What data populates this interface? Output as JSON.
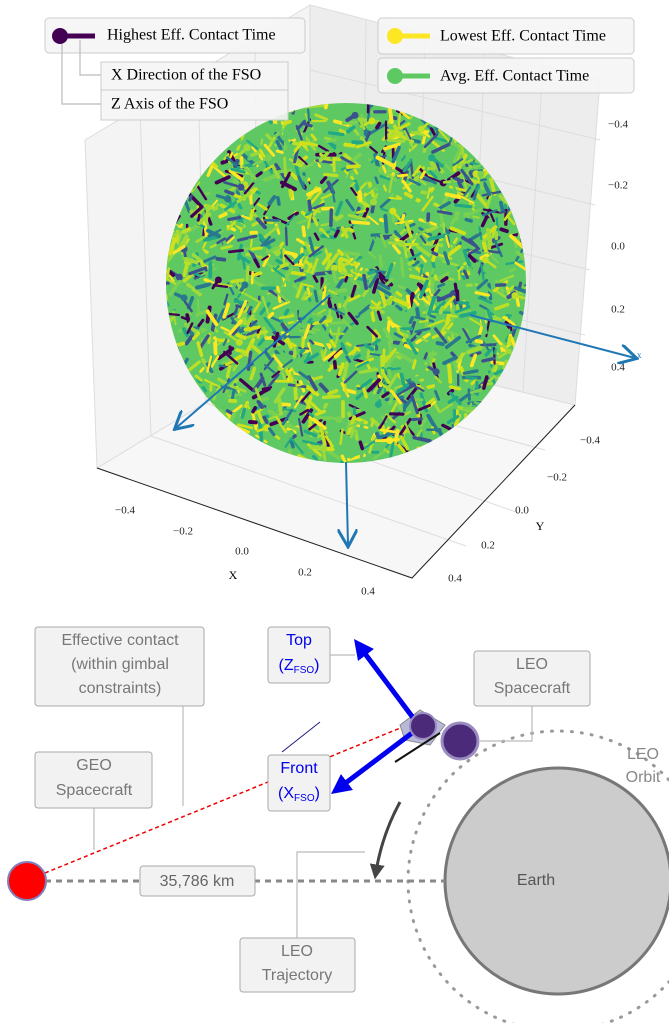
{
  "plot": {
    "legend": [
      "Highest Eff. Contact Time",
      "Lowest Eff. Contact Time",
      "Avg. Eff. Contact Time"
    ],
    "annotations": [
      "X Direction of the FSO",
      "Z Axis of the FSO"
    ],
    "x_axis": {
      "label": "X",
      "ticks": [
        "−0.4",
        "−0.2",
        "0.0",
        "0.2",
        "0.4"
      ]
    },
    "y_axis": {
      "label": "Y",
      "ticks": [
        "−0.4",
        "−0.2",
        "0.0",
        "0.2",
        "0.4"
      ]
    },
    "z_axis": {
      "ticks": [
        "−0.4",
        "−0.2",
        "0.0",
        "0.2",
        "0.4"
      ]
    },
    "arrow_label": "x"
  },
  "diagram": {
    "effective_contact": [
      "Effective contact",
      "(within gimbal",
      "constraints)"
    ],
    "top": {
      "text": "Top",
      "axis": "(Z",
      "sub": "FSO",
      "close": ")"
    },
    "front": {
      "text": "Front",
      "axis": "(X",
      "sub": "FSO",
      "close": ")"
    },
    "leo_spacecraft": [
      "LEO",
      "Spacecraft"
    ],
    "leo_orbit": [
      "LEO",
      "Orbit"
    ],
    "geo_spacecraft": [
      "GEO",
      "Spacecraft"
    ],
    "distance": "35,786 km",
    "earth": "Earth",
    "leo_trajectory": [
      "LEO",
      "Trajectory"
    ]
  }
}
